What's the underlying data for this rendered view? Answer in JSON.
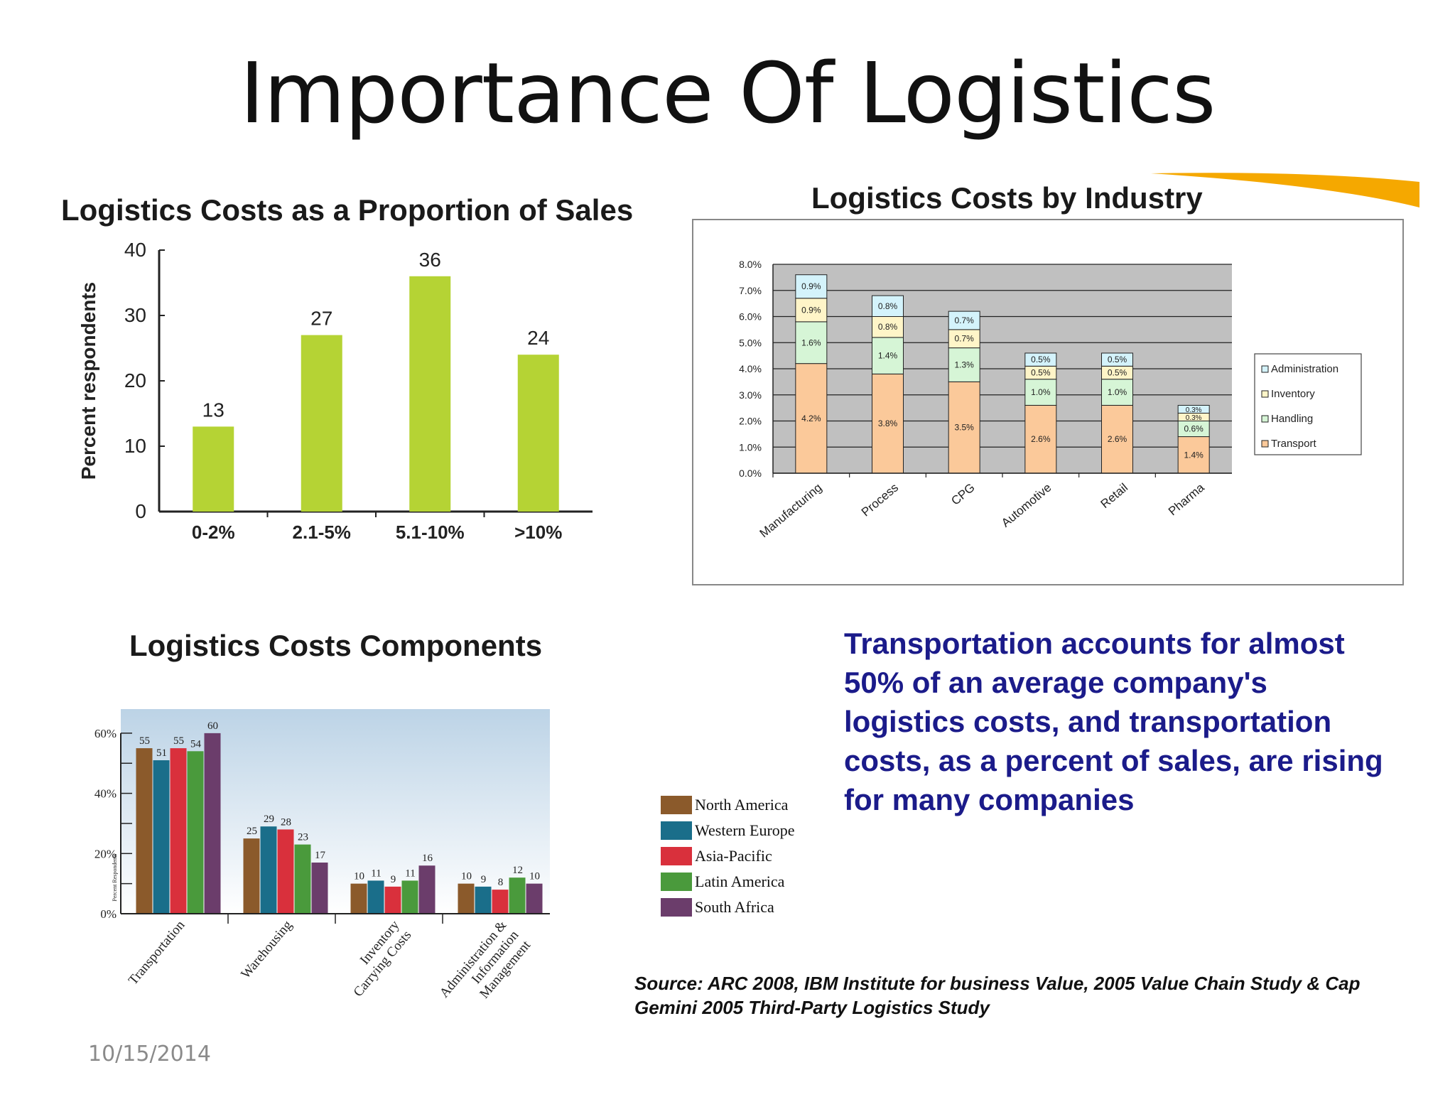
{
  "slide": {
    "title": "Importance Of Logistics",
    "date": "10/15/2014",
    "callout": "Transportation accounts for almost 50% of an average company's logistics costs, and transportation costs, as a percent of sales, are rising for many companies",
    "source": "Source: ARC 2008,  IBM Institute for business Value, 2005 Value Chain Study & Cap Gemini 2005 Third-Party Logistics Study",
    "colors": {
      "title": "#111111",
      "callout": "#1b1b8a",
      "deco": "#f5a800"
    }
  },
  "chart_data": [
    {
      "type": "bar",
      "title": "Logistics Costs as a Proportion of Sales",
      "ylabel": "Percent respondents",
      "xlabel": "",
      "categories": [
        "0-2%",
        "2.1-5%",
        "5.1-10%",
        ">10%"
      ],
      "values": [
        13,
        27,
        36,
        24
      ],
      "ylim": [
        0,
        40
      ],
      "yticks": [
        0,
        10,
        20,
        30,
        40
      ],
      "grid": false,
      "color": "#b5d334"
    },
    {
      "type": "bar",
      "stacked": true,
      "title": "Logistics Costs by Industry",
      "categories": [
        "Manufacturing",
        "Process",
        "CPG",
        "Automotive",
        "Retail",
        "Pharma"
      ],
      "ylim": [
        0,
        8
      ],
      "yticks": [
        "0.0%",
        "1.0%",
        "2.0%",
        "3.0%",
        "4.0%",
        "5.0%",
        "6.0%",
        "7.0%",
        "8.0%"
      ],
      "grid": true,
      "legend": "right",
      "series": [
        {
          "name": "Transport",
          "color": "#fbc99a",
          "values": [
            4.2,
            3.8,
            3.5,
            2.6,
            2.6,
            1.4
          ],
          "labels": [
            "4.2%",
            "3.8%",
            "3.5%",
            "2.6%",
            "2.6%",
            "1.4%"
          ]
        },
        {
          "name": "Handling",
          "color": "#d6f5d6",
          "values": [
            1.6,
            1.4,
            1.3,
            1.0,
            1.0,
            0.6
          ],
          "labels": [
            "1.6%",
            "1.4%",
            "1.3%",
            "1.0%",
            "1.0%",
            "0.6%"
          ]
        },
        {
          "name": "Inventory",
          "color": "#fff5c8",
          "values": [
            0.9,
            0.8,
            0.7,
            0.5,
            0.5,
            0.3
          ],
          "labels": [
            "0.9%",
            "0.8%",
            "0.7%",
            "0.5%",
            "0.5%",
            "0.3%"
          ]
        },
        {
          "name": "Administration",
          "color": "#d4f3fb",
          "values": [
            0.9,
            0.8,
            0.7,
            0.5,
            0.5,
            0.3
          ],
          "labels": [
            "0.9%",
            "0.8%",
            "0.7%",
            "0.5%",
            "0.5%",
            "0.3%"
          ]
        }
      ],
      "legend_order": [
        "Administration",
        "Inventory",
        "Handling",
        "Transport"
      ]
    },
    {
      "type": "bar",
      "title": "Logistics Costs Components",
      "ylabel": "Percent Respondents",
      "categories": [
        "Transportation",
        "Warehousing",
        "Inventory Carrying Costs",
        "Administration & Information Management"
      ],
      "ylim": [
        0,
        60
      ],
      "yticks": [
        "0%",
        "20%",
        "40%",
        "60%"
      ],
      "legend": "right",
      "series": [
        {
          "name": "North America",
          "color": "#8b5a2b",
          "values": [
            55,
            25,
            10,
            10
          ]
        },
        {
          "name": "Western Europe",
          "color": "#1a6e8a",
          "values": [
            51,
            29,
            11,
            9
          ]
        },
        {
          "name": "Asia-Pacific",
          "color": "#d9303c",
          "values": [
            55,
            28,
            9,
            8
          ]
        },
        {
          "name": "Latin America",
          "color": "#4a9a3c",
          "values": [
            54,
            23,
            11,
            12
          ]
        },
        {
          "name": "South Africa",
          "color": "#6b3d6b",
          "values": [
            60,
            17,
            16,
            10
          ]
        }
      ]
    }
  ]
}
